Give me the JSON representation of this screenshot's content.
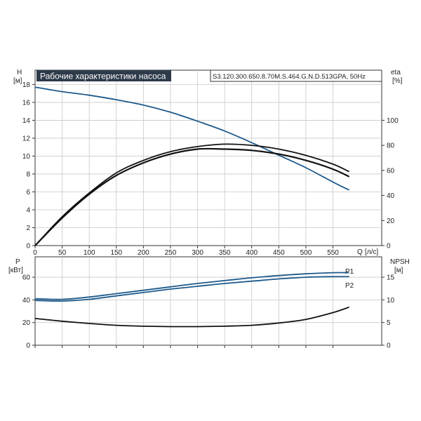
{
  "header": {
    "title": "Рабочие характеристики насоса",
    "model": "S3.120.300.650.8.70M.S.464.G.N.D.513GPA, 50Hz"
  },
  "chart_data": [
    {
      "type": "line",
      "panel": "top",
      "left_axis": {
        "label": "H",
        "unit": "[м]",
        "ticks": [
          0,
          2,
          4,
          6,
          8,
          10,
          12,
          14,
          16,
          18
        ],
        "range": [
          0,
          19.6
        ]
      },
      "right_axis": {
        "label": "eta",
        "unit": "[%]",
        "ticks": [
          0,
          20,
          40,
          60,
          80,
          100
        ],
        "range": [
          0,
          140
        ]
      },
      "x_axis": {
        "label": "Q",
        "unit": "[л/с]",
        "ticks": [
          0,
          50,
          100,
          150,
          200,
          250,
          300,
          350,
          400,
          450,
          500,
          550
        ],
        "range": [
          0,
          640
        ]
      },
      "grid": true,
      "series": [
        {
          "axis": "left",
          "color": "#1e5a8c",
          "x": [
            0,
            50,
            100,
            150,
            200,
            250,
            300,
            350,
            400,
            450,
            500,
            550,
            580
          ],
          "y": [
            17.7,
            17.2,
            16.8,
            16.3,
            15.7,
            14.9,
            13.9,
            12.8,
            11.5,
            10.1,
            8.7,
            7.1,
            6.2
          ]
        },
        {
          "axis": "right",
          "color": "#111111",
          "x": [
            0,
            50,
            100,
            150,
            200,
            250,
            300,
            350,
            400,
            450,
            500,
            550,
            580
          ],
          "y": [
            0,
            22,
            41,
            56,
            66,
            73,
            77,
            77,
            76,
            73,
            68,
            61,
            55
          ]
        },
        {
          "axis": "right",
          "color": "#111111",
          "x": [
            0,
            50,
            100,
            150,
            200,
            250,
            300,
            350,
            400,
            450,
            500,
            550,
            580
          ],
          "y": [
            0,
            23,
            42,
            58,
            68,
            75,
            79,
            81,
            80,
            77,
            72,
            65,
            59
          ]
        }
      ]
    },
    {
      "type": "line",
      "panel": "bottom",
      "left_axis": {
        "label": "P",
        "unit": "[кВт]",
        "ticks": [
          0,
          20,
          40,
          60
        ],
        "range": [
          0,
          78
        ]
      },
      "right_axis": {
        "label": "NPSH",
        "unit": "[м]",
        "ticks": [
          0,
          5,
          10,
          15
        ],
        "range": [
          0,
          19.5
        ]
      },
      "x_axis": {
        "ticks": [
          0,
          50,
          100,
          150,
          200,
          250,
          300,
          350,
          400,
          450,
          500,
          550
        ],
        "range": [
          0,
          640
        ]
      },
      "grid": true,
      "series": [
        {
          "name": "P1",
          "axis": "left",
          "color": "#1e5a8c",
          "x": [
            0,
            50,
            100,
            150,
            200,
            250,
            300,
            350,
            400,
            450,
            500,
            550,
            580
          ],
          "y": [
            41,
            40.5,
            42.5,
            45.5,
            48.5,
            51.5,
            54.5,
            57,
            59.5,
            61.5,
            63,
            64,
            64
          ]
        },
        {
          "name": "P2",
          "axis": "left",
          "color": "#1e5a8c",
          "x": [
            0,
            50,
            100,
            150,
            200,
            250,
            300,
            350,
            400,
            450,
            500,
            550,
            580
          ],
          "y": [
            39.5,
            39,
            40.5,
            43.5,
            46.5,
            49.5,
            52,
            54.5,
            56.5,
            58.5,
            60,
            60.5,
            60.5
          ]
        },
        {
          "axis": "right",
          "color": "#111111",
          "x": [
            0,
            50,
            100,
            150,
            200,
            250,
            300,
            350,
            400,
            450,
            500,
            550,
            580
          ],
          "y": [
            5.9,
            5.3,
            4.8,
            4.4,
            4.2,
            4.1,
            4.1,
            4.2,
            4.4,
            4.9,
            5.7,
            7.2,
            8.4
          ]
        }
      ]
    }
  ]
}
